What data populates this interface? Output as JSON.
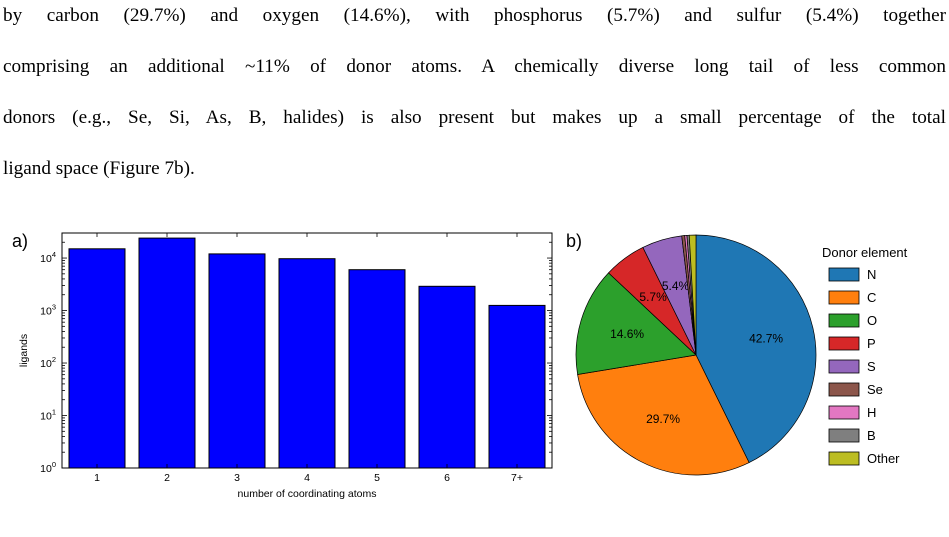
{
  "paragraph": {
    "lines": [
      "by carbon (29.7%) and oxygen (14.6%), with phosphorus (5.7%) and sulfur (5.4%) together",
      "comprising an additional ~11% of donor atoms. A chemically diverse long tail of less common",
      "donors (e.g., Se, Si, As, B, halides) is also present but makes up a small percentage of the total",
      "ligand space (Figure 7b)."
    ]
  },
  "figure": {
    "panel_a_label": "a)",
    "panel_b_label": "b)"
  },
  "chart_data": [
    {
      "type": "bar",
      "panel": "a",
      "categories": [
        "1",
        "2",
        "3",
        "4",
        "5",
        "6",
        "7+"
      ],
      "values": [
        15000,
        24000,
        12000,
        9700,
        6000,
        2900,
        1250
      ],
      "xlabel": "number of coordinating atoms",
      "ylabel": "ligands",
      "yscale": "log",
      "ylim": [
        1,
        30000
      ],
      "yticks": [
        {
          "base": "10",
          "exp": "0"
        },
        {
          "base": "10",
          "exp": "1"
        },
        {
          "base": "10",
          "exp": "2"
        },
        {
          "base": "10",
          "exp": "3"
        },
        {
          "base": "10",
          "exp": "4"
        }
      ],
      "bar_color": "#0000ff",
      "grid": false
    },
    {
      "type": "pie",
      "panel": "b",
      "legend_title": "Donor element",
      "legend_position": "right",
      "slices": [
        {
          "label": "N",
          "value": 42.7,
          "text": "42.7%",
          "color": "#1f77b4"
        },
        {
          "label": "C",
          "value": 29.7,
          "text": "29.7%",
          "color": "#ff7f0e"
        },
        {
          "label": "O",
          "value": 14.6,
          "text": "14.6%",
          "color": "#2ca02c"
        },
        {
          "label": "P",
          "value": 5.7,
          "text": "5.7%",
          "color": "#d62728"
        },
        {
          "label": "S",
          "value": 5.4,
          "text": "5.4%",
          "color": "#9467bd"
        },
        {
          "label": "Se",
          "value": 0.4,
          "text": "",
          "color": "#8c564b"
        },
        {
          "label": "H",
          "value": 0.3,
          "text": "",
          "color": "#e377c2"
        },
        {
          "label": "B",
          "value": 0.3,
          "text": "",
          "color": "#7f7f7f"
        },
        {
          "label": "Other",
          "value": 0.9,
          "text": "",
          "color": "#bcbd22"
        }
      ]
    }
  ]
}
